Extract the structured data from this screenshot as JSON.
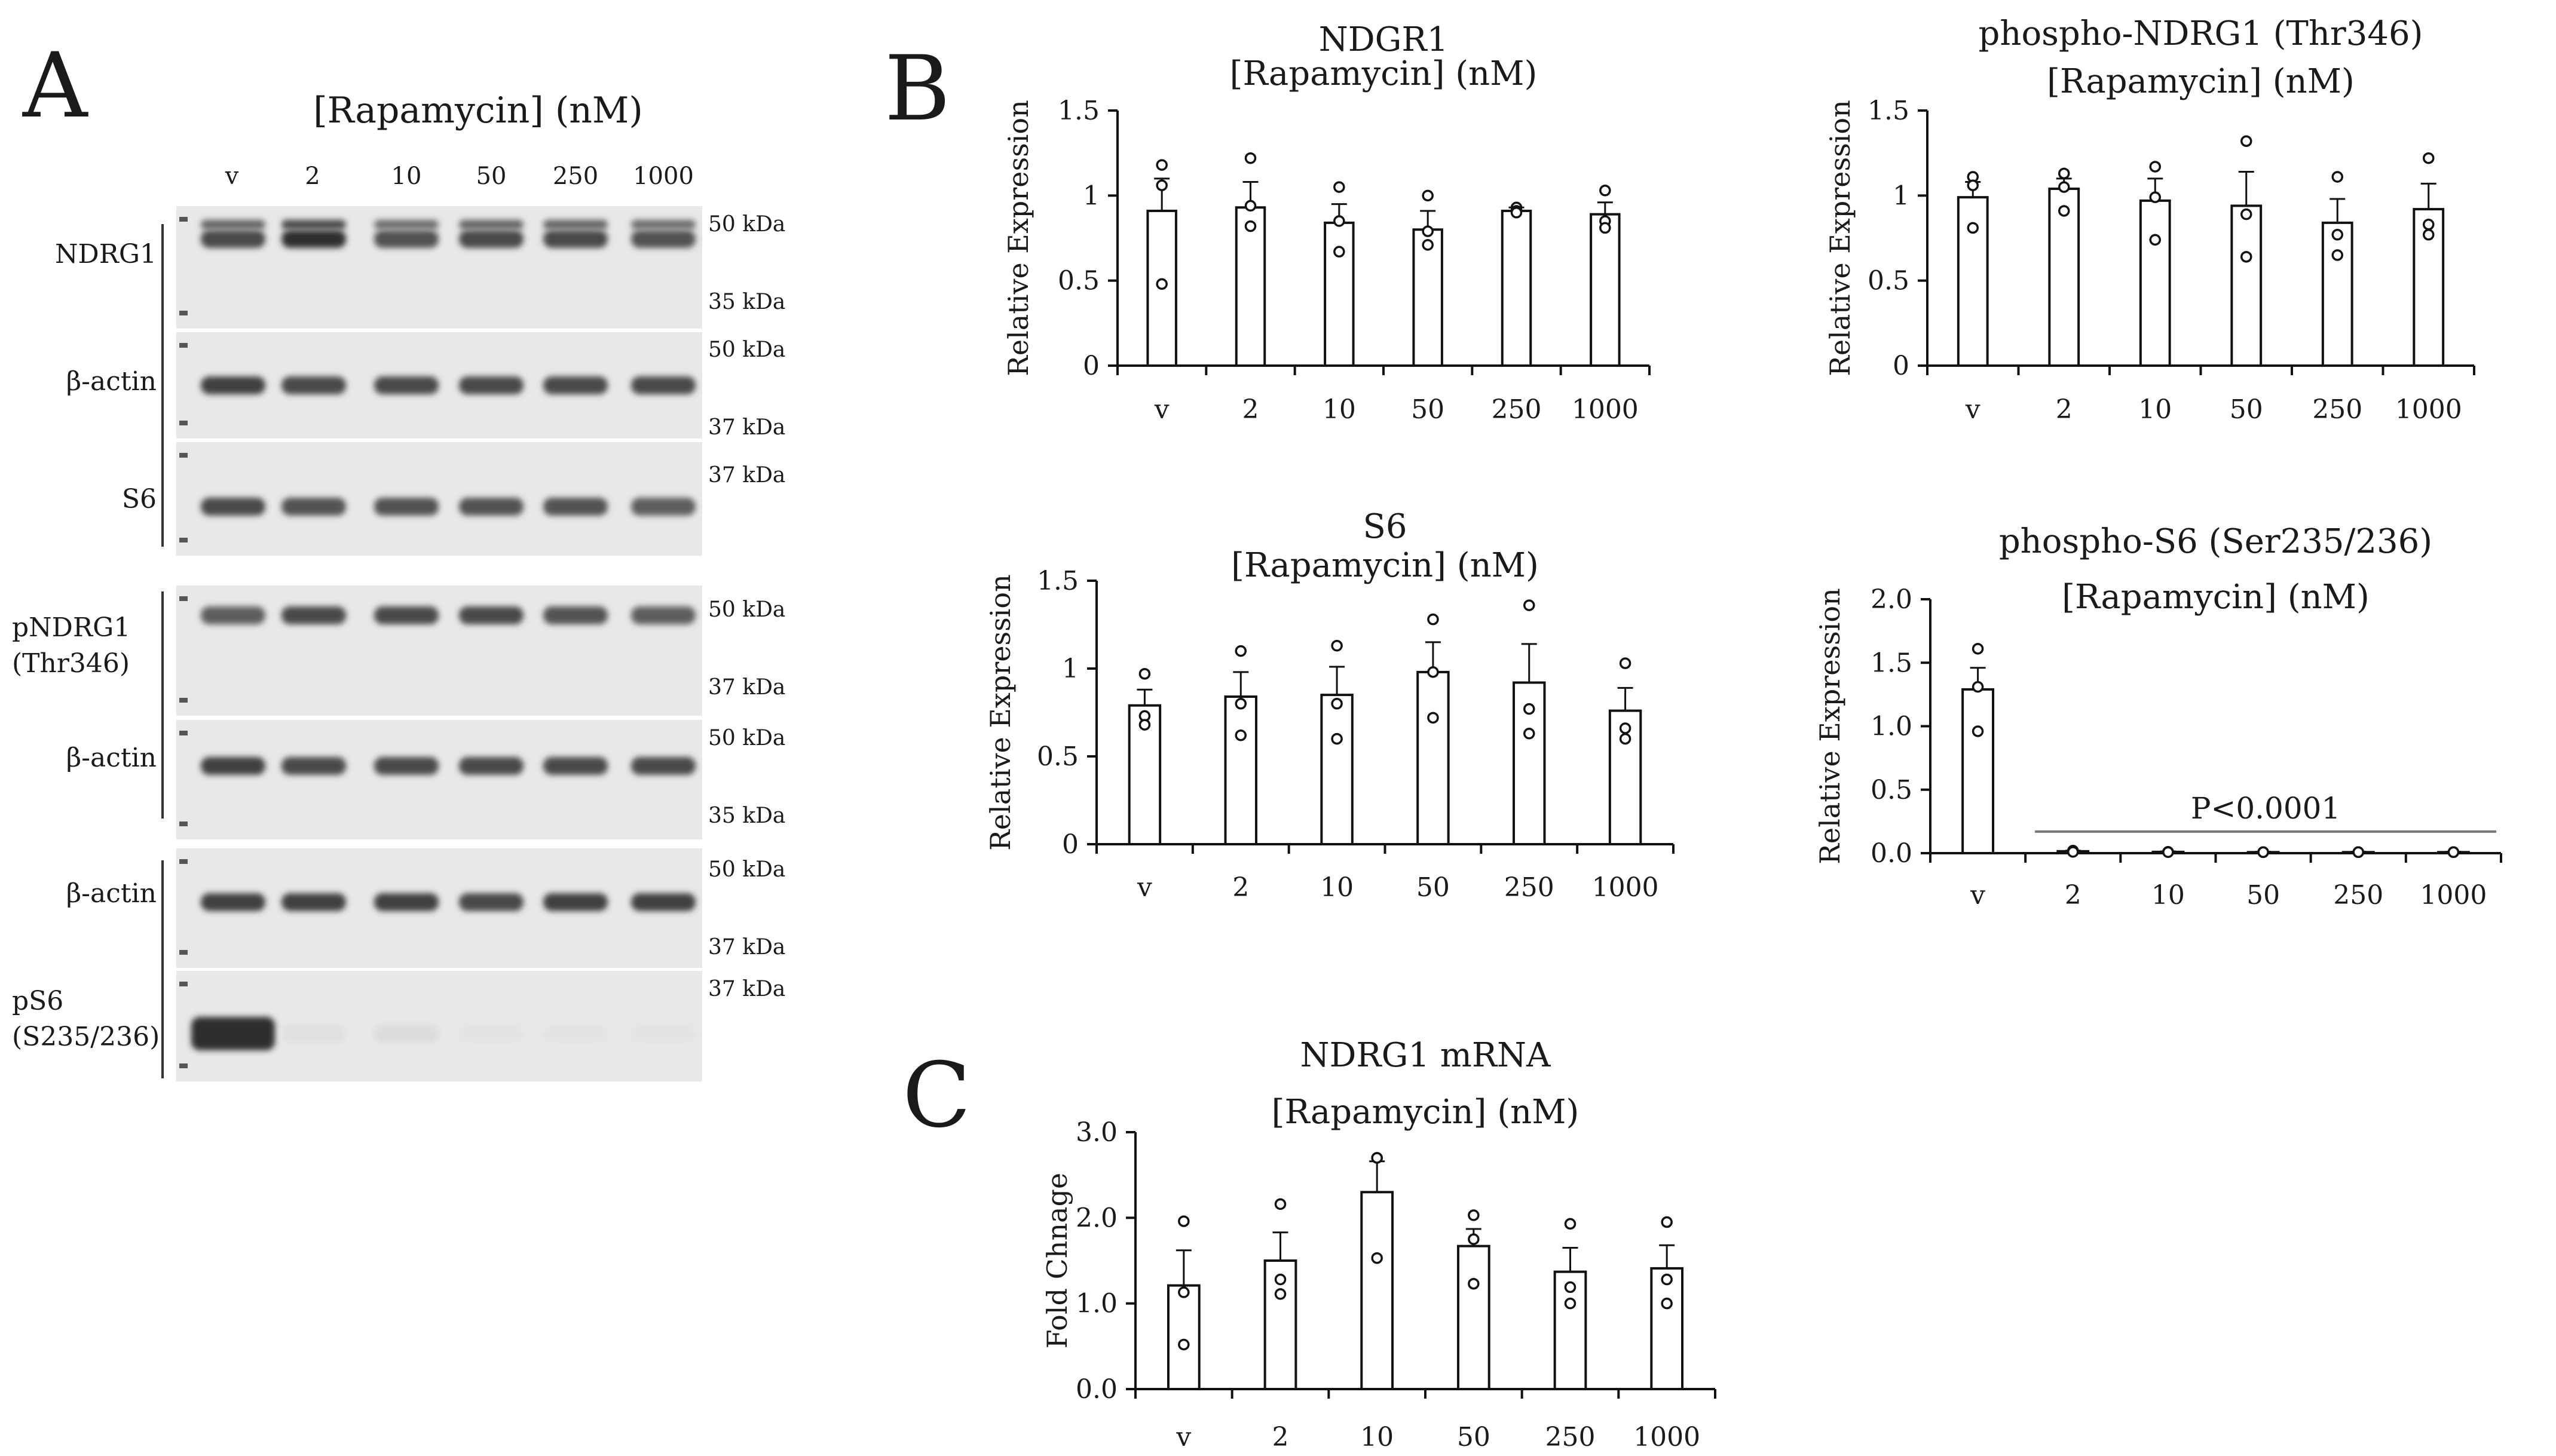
{
  "panel_labels": {
    "a": "A",
    "b": "B",
    "c": "C"
  },
  "blot": {
    "treatment_label": "[Rapamycin] (nM)",
    "lanes": [
      "v",
      "2",
      "10",
      "50",
      "250",
      "1000"
    ],
    "rows": [
      {
        "label": "NDRG1",
        "top_marker": "50 kDa",
        "bottom_marker": "35 kDa",
        "intensities": [
          0.85,
          1.0,
          0.8,
          0.85,
          0.85,
          0.8
        ],
        "doublet": true
      },
      {
        "label": "β-actin",
        "top_marker": "50 kDa",
        "bottom_marker": "37 kDa",
        "intensities": [
          0.9,
          0.85,
          0.85,
          0.85,
          0.85,
          0.85
        ],
        "doublet": false
      },
      {
        "label": "S6",
        "top_marker": "37 kDa",
        "bottom_marker": "",
        "intensities": [
          0.85,
          0.8,
          0.8,
          0.8,
          0.8,
          0.75
        ],
        "doublet": false
      },
      {
        "label": "pNDRG1\n(Thr346)",
        "top_marker": "50 kDa",
        "bottom_marker": "37 kDa",
        "intensities": [
          0.75,
          0.85,
          0.85,
          0.85,
          0.8,
          0.75
        ],
        "doublet": false
      },
      {
        "label": "β-actin",
        "top_marker": "50 kDa",
        "bottom_marker": "35 kDa",
        "intensities": [
          0.9,
          0.85,
          0.85,
          0.85,
          0.85,
          0.85
        ],
        "doublet": false
      },
      {
        "label": "β-actin",
        "top_marker": "50 kDa",
        "bottom_marker": "37 kDa",
        "intensities": [
          0.9,
          0.9,
          0.9,
          0.85,
          0.9,
          0.9
        ],
        "doublet": false
      },
      {
        "label": "pS6\n(S235/236)",
        "top_marker": "37 kDa",
        "bottom_marker": "",
        "intensities": [
          1.0,
          0.06,
          0.08,
          0.04,
          0.04,
          0.04
        ],
        "doublet": false
      }
    ]
  },
  "chart_data": [
    {
      "type": "bar",
      "title": "NDGR1",
      "subtitle": "[Rapamycin] (nM)",
      "ylabel": "Relative Expression",
      "ylim": [
        0,
        1.5
      ],
      "yticks": [
        "0",
        "0.5",
        "1",
        "1.5"
      ],
      "categories": [
        "v",
        "2",
        "10",
        "50",
        "250",
        "1000"
      ],
      "values": [
        0.91,
        0.93,
        0.84,
        0.8,
        0.91,
        0.89
      ],
      "errors": [
        0.19,
        0.15,
        0.11,
        0.11,
        0.02,
        0.07
      ],
      "points": [
        [
          1.18,
          1.06,
          0.48
        ],
        [
          1.22,
          0.94,
          0.82
        ],
        [
          1.05,
          0.85,
          0.67
        ],
        [
          1.0,
          0.79,
          0.71
        ],
        [
          0.93,
          0.91,
          0.9
        ],
        [
          1.03,
          0.85,
          0.81
        ]
      ],
      "annotation": ""
    },
    {
      "type": "bar",
      "title": "phospho-NDRG1 (Thr346)",
      "subtitle": "[Rapamycin] (nM)",
      "ylabel": "Relative Expression",
      "ylim": [
        0,
        1.5
      ],
      "yticks": [
        "0",
        "0.5",
        "1",
        "1.5"
      ],
      "categories": [
        "v",
        "2",
        "10",
        "50",
        "250",
        "1000"
      ],
      "values": [
        0.99,
        1.04,
        0.97,
        0.94,
        0.84,
        0.92
      ],
      "errors": [
        0.09,
        0.06,
        0.13,
        0.2,
        0.14,
        0.15
      ],
      "points": [
        [
          1.11,
          1.06,
          0.81
        ],
        [
          1.13,
          1.05,
          0.91
        ],
        [
          1.17,
          0.99,
          0.74
        ],
        [
          1.32,
          0.89,
          0.64
        ],
        [
          1.11,
          0.77,
          0.65
        ],
        [
          1.22,
          0.83,
          0.77
        ]
      ],
      "annotation": ""
    },
    {
      "type": "bar",
      "title": "S6",
      "subtitle": "[Rapamycin] (nM)",
      "ylabel": "Relative Expression",
      "ylim": [
        0,
        1.5
      ],
      "yticks": [
        "0",
        "0.5",
        "1",
        "1.5"
      ],
      "categories": [
        "v",
        "2",
        "10",
        "50",
        "250",
        "1000"
      ],
      "values": [
        0.79,
        0.84,
        0.85,
        0.98,
        0.92,
        0.76
      ],
      "errors": [
        0.09,
        0.14,
        0.16,
        0.17,
        0.22,
        0.13
      ],
      "points": [
        [
          0.97,
          0.73,
          0.68
        ],
        [
          1.1,
          0.8,
          0.62
        ],
        [
          1.13,
          0.8,
          0.6
        ],
        [
          1.28,
          0.98,
          0.72
        ],
        [
          1.36,
          0.77,
          0.63
        ],
        [
          1.03,
          0.66,
          0.6
        ]
      ],
      "annotation": ""
    },
    {
      "type": "bar",
      "title": "phospho-S6 (Ser235/236)",
      "subtitle": "[Rapamycin] (nM)",
      "ylabel": "Relative Expression",
      "ylim": [
        0,
        2.0
      ],
      "yticks": [
        "0.0",
        "0.5",
        "1.0",
        "1.5",
        "2.0"
      ],
      "categories": [
        "v",
        "2",
        "10",
        "50",
        "250",
        "1000"
      ],
      "values": [
        1.29,
        0.015,
        0.01,
        0.008,
        0.008,
        0.008
      ],
      "errors": [
        0.17,
        0.005,
        0.004,
        0.003,
        0.003,
        0.003
      ],
      "points": [
        [
          1.61,
          1.31,
          0.96
        ],
        [
          0.02,
          0.015,
          0.01
        ],
        [
          0.01,
          0.01,
          0.008
        ],
        [
          0.008,
          0.008,
          0.008
        ],
        [
          0.008,
          0.008,
          0.008
        ],
        [
          0.008,
          0.008,
          0.008
        ]
      ],
      "annotation": "P<0.0001"
    },
    {
      "type": "bar",
      "title": "NDRG1 mRNA",
      "subtitle": "[Rapamycin] (nM)",
      "ylabel": "Fold Chnage",
      "ylim": [
        0,
        3.0
      ],
      "yticks": [
        "0.0",
        "1.0",
        "2.0",
        "3.0"
      ],
      "categories": [
        "v",
        "2",
        "10",
        "50",
        "250",
        "1000"
      ],
      "values": [
        1.21,
        1.5,
        2.3,
        1.67,
        1.37,
        1.41
      ],
      "errors": [
        0.41,
        0.33,
        0.36,
        0.2,
        0.28,
        0.27
      ],
      "points": [
        [
          1.96,
          1.13,
          0.52
        ],
        [
          2.16,
          1.28,
          1.11
        ],
        [
          2.7,
          2.7,
          1.53
        ],
        [
          2.03,
          1.75,
          1.23
        ],
        [
          1.93,
          1.19,
          1.0
        ],
        [
          1.95,
          1.28,
          1.0
        ]
      ],
      "annotation": ""
    }
  ]
}
